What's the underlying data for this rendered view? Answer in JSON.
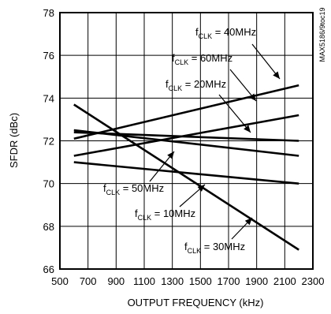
{
  "chart_data": {
    "type": "line",
    "xlabel": "OUTPUT FREQUENCY (kHz)",
    "ylabel": "SFDR (dBc)",
    "xlim": [
      500,
      2300
    ],
    "ylim": [
      66,
      78
    ],
    "x_ticks": [
      "500",
      "700",
      "900",
      "1100",
      "1300",
      "1500",
      "1700",
      "1900",
      "2100",
      "2300"
    ],
    "y_ticks": [
      "66",
      "68",
      "70",
      "72",
      "74",
      "76",
      "78"
    ],
    "grid": true,
    "watermark": "MAX5186/9toc19",
    "series": [
      {
        "name": "fCLK = 40MHz",
        "sub": "CLK",
        "value": " = 40MHz",
        "x": [
          600,
          2200
        ],
        "y": [
          72.1,
          74.6
        ]
      },
      {
        "name": "fCLK = 60MHz",
        "sub": "CLK",
        "value": " = 60MHz",
        "x": [
          600,
          2200
        ],
        "y": [
          71.3,
          73.2
        ]
      },
      {
        "name": "fCLK = 20MHz",
        "sub": "CLK",
        "value": " = 20MHz",
        "x": [
          600,
          2200
        ],
        "y": [
          72.5,
          71.3
        ]
      },
      {
        "name": "fCLK = 50MHz",
        "sub": "CLK",
        "value": " = 50MHz",
        "x": [
          600,
          2200
        ],
        "y": [
          72.4,
          72.0
        ]
      },
      {
        "name": "fCLK = 10MHz",
        "sub": "CLK",
        "value": " = 10MHz",
        "x": [
          600,
          2200
        ],
        "y": [
          71.0,
          70.0
        ]
      },
      {
        "name": "fCLK = 30MHz",
        "sub": "CLK",
        "value": " = 30MHz",
        "x": [
          600,
          2200
        ],
        "y": [
          73.7,
          66.9
        ]
      }
    ]
  }
}
